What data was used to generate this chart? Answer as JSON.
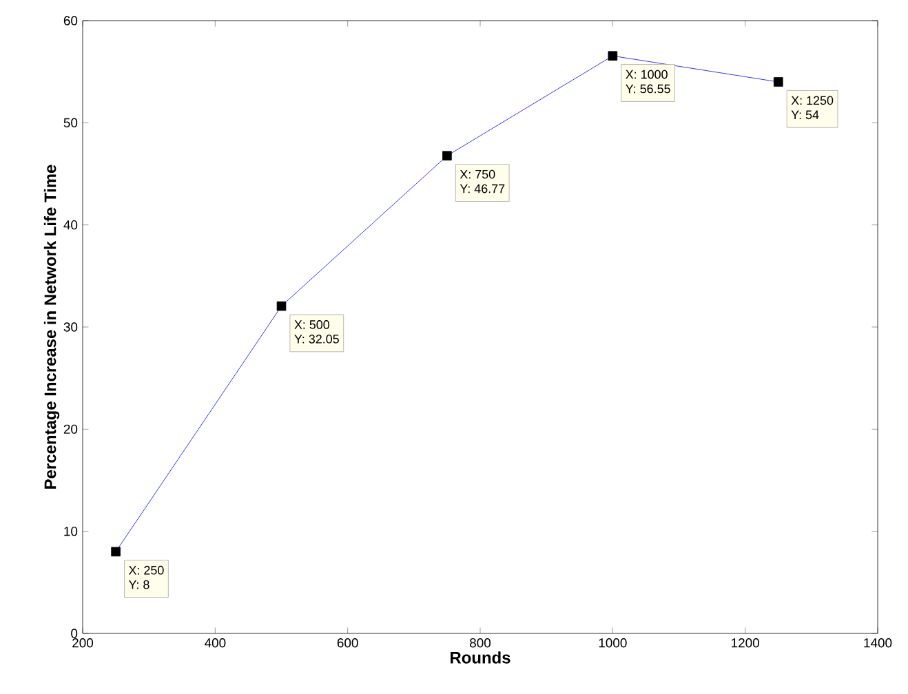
{
  "chart_data": {
    "type": "line",
    "xlabel": "Rounds",
    "ylabel": "Percentage Increase in Network Life Time",
    "x": [
      250,
      500,
      750,
      1000,
      1250
    ],
    "series": [
      {
        "color": "#0000ff",
        "values": [
          8,
          32.05,
          46.77,
          56.55,
          54
        ]
      }
    ],
    "marker": "square",
    "line_style": "solid",
    "xlim": [
      200,
      1400
    ],
    "xticks": [
      200,
      400,
      600,
      800,
      1000,
      1200,
      1400
    ],
    "ylim": [
      0,
      60
    ],
    "yticks": [
      0,
      10,
      20,
      30,
      40,
      50,
      60
    ],
    "annotations": [
      {
        "text": "X: 250",
        "x": 250,
        "y": 8
      },
      {
        "text": "Y: 8",
        "x": 250,
        "y": 8
      },
      {
        "text": "X: 500",
        "x": 500,
        "y": 32.05
      },
      {
        "text": "Y: 32.05",
        "x": 500,
        "y": 32.05
      },
      {
        "text": "X: 750",
        "x": 750,
        "y": 46.77
      },
      {
        "text": "Y: 46.77",
        "x": 750,
        "y": 46.77
      },
      {
        "text": "X: 1000",
        "x": 1000,
        "y": 56.55
      },
      {
        "text": "Y: 56.55",
        "x": 1000,
        "y": 56.55
      },
      {
        "text": "X: 1250",
        "x": 1250,
        "y": 54
      },
      {
        "text": "Y: 54",
        "x": 1250,
        "y": 54
      }
    ]
  }
}
